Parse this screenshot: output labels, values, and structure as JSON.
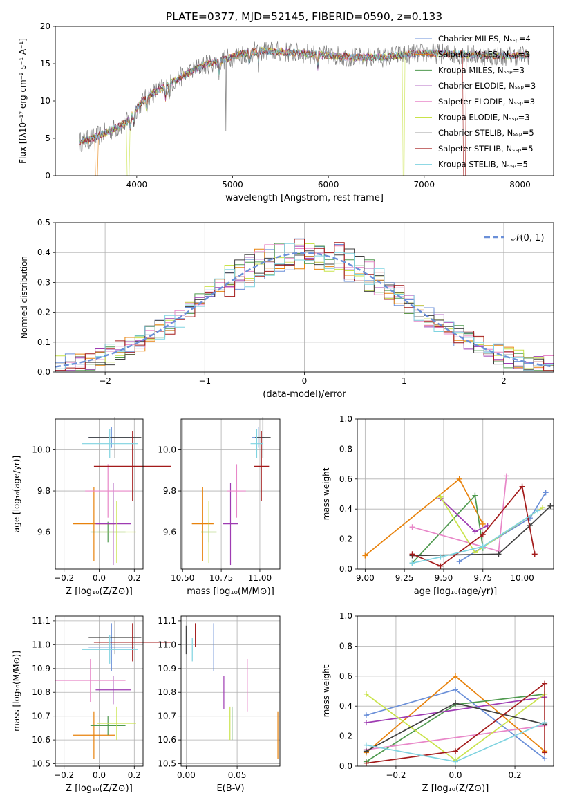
{
  "title": "PLATE=0377, MJD=52145, FIBERID=0590, z=0.133",
  "colors": {
    "c1": "#6a8fd8",
    "c2": "#e8820c",
    "c3": "#4f9a4f",
    "c4": "#9e3bb2",
    "c5": "#e887c8",
    "c6": "#c9e34a",
    "c7": "#404040",
    "c8": "#a31a1a",
    "c9": "#7fd3e0",
    "spec_gray": "#7f7f7f",
    "grid": "#b0b0b0"
  },
  "chart_data": [
    {
      "id": "spectrum",
      "type": "line",
      "xlabel": "wavelength [Angstrom, rest frame]",
      "ylabel": "Flux [fλ10⁻¹⁷ erg cm⁻² s⁻¹ A⁻¹]",
      "xlim": [
        3150,
        8350
      ],
      "ylim": [
        0,
        20
      ],
      "xticks": [
        "4000",
        "5000",
        "6000",
        "7000",
        "8000"
      ],
      "yticks": [
        "0",
        "5",
        "10",
        "15",
        "20"
      ],
      "grid": false,
      "legend_position": "top-right",
      "legend": [
        "Chabrier MILES, N_SSP=4",
        "Salpeter MILES, N_SSP=3",
        "Kroupa MILES, N_SSP=3",
        "Chabrier ELODIE, N_SSP=3",
        "Salpeter ELODIE, N_SSP=3",
        "Kroupa ELODIE, N_SSP=3",
        "Chabrier STELIB, N_SSP=5",
        "Salpeter STELIB, N_SSP=5",
        "Kroupa STELIB, N_SSP=5"
      ],
      "continuum": {
        "x": [
          3400,
          3500,
          3650,
          3800,
          3900,
          4000,
          4100,
          4300,
          4500,
          4700,
          4900,
          5100,
          5300,
          5500,
          5700,
          6000,
          6300,
          6600,
          6800,
          7000,
          7300,
          7600,
          7900,
          8100
        ],
        "y": [
          4.5,
          4.8,
          5.6,
          6.5,
          7.2,
          9.0,
          10.5,
          12.0,
          13.5,
          14.8,
          15.5,
          16.3,
          16.7,
          16.6,
          16.4,
          16.1,
          15.8,
          15.9,
          16.2,
          16.4,
          16.3,
          16.1,
          16.0,
          16.2
        ]
      }
    },
    {
      "id": "residuals",
      "type": "histogram",
      "xlabel": "(data-model)/error",
      "ylabel": "Normed distribution",
      "xlim": [
        -2.5,
        2.5
      ],
      "ylim": [
        0,
        0.5
      ],
      "xticks": [
        "−2",
        "−1",
        "0",
        "1",
        "2"
      ],
      "yticks": [
        "0.0",
        "0.1",
        "0.2",
        "0.3",
        "0.4",
        "0.5"
      ],
      "grid": true,
      "legend_position": "top-right",
      "legend": [
        "𝒩(0, 1)"
      ],
      "bin_width": 0.1,
      "curve": "normal pdf, mean 0, sigma 1"
    },
    {
      "id": "age_vs_Z",
      "type": "scatter",
      "xlabel": "Z [log₁₀(Z/Z⊙)]",
      "ylabel": "age  [log₁₀(age/yr)]",
      "xlim": [
        -0.25,
        0.25
      ],
      "ylim": [
        9.42,
        10.15
      ],
      "xticks": [
        "−0.2",
        "0.0",
        "0.2"
      ],
      "yticks": [
        "9.6",
        "9.8",
        "10.0"
      ],
      "grid": true,
      "points": [
        {
          "x": 0.07,
          "y": 10.06,
          "xerr": 0.13,
          "yerr": 0.05,
          "color": "c1"
        },
        {
          "x": -0.03,
          "y": 9.64,
          "xerr": 0.12,
          "yerr": 0.18,
          "color": "c2"
        },
        {
          "x": 0.05,
          "y": 9.6,
          "xerr": 0.1,
          "yerr": 0.05,
          "color": "c3"
        },
        {
          "x": 0.08,
          "y": 9.64,
          "xerr": 0.1,
          "yerr": 0.2,
          "color": "c4"
        },
        {
          "x": 0.05,
          "y": 9.8,
          "xerr": 0.13,
          "yerr": 0.13,
          "color": "c5"
        },
        {
          "x": 0.1,
          "y": 9.6,
          "xerr": 0.11,
          "yerr": 0.15,
          "color": "c6"
        },
        {
          "x": 0.09,
          "y": 10.06,
          "xerr": 0.15,
          "yerr": 0.1,
          "color": "c7"
        },
        {
          "x": 0.19,
          "y": 9.92,
          "xerr": 0.22,
          "yerr": 0.17,
          "color": "c8"
        },
        {
          "x": 0.06,
          "y": 10.03,
          "xerr": 0.16,
          "yerr": 0.07,
          "color": "c9"
        }
      ]
    },
    {
      "id": "age_vs_mass",
      "type": "scatter",
      "xlabel": "mass [log₁₀(M/M⊙)]",
      "ylabel": "",
      "xlim": [
        10.49,
        11.13
      ],
      "ylim": [
        9.42,
        10.15
      ],
      "xticks": [
        "10.50",
        "10.75",
        "11.00"
      ],
      "yticks": [
        "9.6",
        "9.8",
        "10.0"
      ],
      "grid": true,
      "points": [
        {
          "x": 10.99,
          "y": 10.06,
          "xerr": 0.04,
          "yerr": 0.05,
          "color": "c1"
        },
        {
          "x": 10.63,
          "y": 9.64,
          "xerr": 0.07,
          "yerr": 0.18,
          "color": "c2"
        },
        {
          "x": 10.67,
          "y": 9.6,
          "xerr": 0.05,
          "yerr": 0.05,
          "color": "c3"
        },
        {
          "x": 10.81,
          "y": 9.64,
          "xerr": 0.05,
          "yerr": 0.2,
          "color": "c4"
        },
        {
          "x": 10.85,
          "y": 9.8,
          "xerr": 0.06,
          "yerr": 0.13,
          "color": "c5"
        },
        {
          "x": 10.67,
          "y": 9.6,
          "xerr": 0.05,
          "yerr": 0.15,
          "color": "c6"
        },
        {
          "x": 11.02,
          "y": 10.06,
          "xerr": 0.05,
          "yerr": 0.1,
          "color": "c7"
        },
        {
          "x": 11.01,
          "y": 9.92,
          "xerr": 0.05,
          "yerr": 0.17,
          "color": "c8"
        },
        {
          "x": 10.98,
          "y": 10.03,
          "xerr": 0.04,
          "yerr": 0.07,
          "color": "c9"
        }
      ]
    },
    {
      "id": "mass_weight_vs_age",
      "type": "line",
      "xlabel": "age  [log₁₀(age/yr)]",
      "ylabel": "mass weight",
      "xlim": [
        8.95,
        10.2
      ],
      "ylim": [
        0,
        1
      ],
      "xticks": [
        "9.00",
        "9.25",
        "9.50",
        "9.75",
        "10.00"
      ],
      "yticks": [
        "0.0",
        "0.2",
        "0.4",
        "0.6",
        "0.8",
        "1.0"
      ],
      "grid": true,
      "series": [
        {
          "color": "c1",
          "x": [
            9.6,
            10.05,
            10.15
          ],
          "y": [
            0.05,
            0.34,
            0.51
          ]
        },
        {
          "color": "c2",
          "x": [
            9.0,
            9.6,
            9.75
          ],
          "y": [
            0.09,
            0.6,
            0.3
          ]
        },
        {
          "color": "c3",
          "x": [
            9.3,
            9.7,
            9.75
          ],
          "y": [
            0.04,
            0.49,
            0.14
          ]
        },
        {
          "color": "c4",
          "x": [
            9.48,
            9.7,
            9.78
          ],
          "y": [
            0.47,
            0.25,
            0.29
          ]
        },
        {
          "color": "c5",
          "x": [
            9.3,
            9.85,
            9.9
          ],
          "y": [
            0.28,
            0.12,
            0.62
          ]
        },
        {
          "color": "c6",
          "x": [
            9.48,
            9.7,
            10.13
          ],
          "y": [
            0.48,
            0.11,
            0.41
          ]
        },
        {
          "color": "c7",
          "x": [
            9.3,
            9.85,
            10.05,
            10.18
          ],
          "y": [
            0.09,
            0.1,
            0.29,
            0.42
          ]
        },
        {
          "color": "c8",
          "x": [
            9.3,
            9.48,
            9.75,
            10.0,
            10.08
          ],
          "y": [
            0.1,
            0.02,
            0.23,
            0.55,
            0.1
          ]
        },
        {
          "color": "c9",
          "x": [
            9.3,
            9.48,
            9.75,
            10.1
          ],
          "y": [
            0.04,
            0.08,
            0.15,
            0.39
          ]
        }
      ]
    },
    {
      "id": "mass_vs_Z",
      "type": "scatter",
      "xlabel": "Z [log₁₀(Z/Z⊙)]",
      "ylabel": "mass [log₁₀(M/M⊙)]",
      "xlim": [
        -0.25,
        0.25
      ],
      "ylim": [
        10.49,
        11.12
      ],
      "xticks": [
        "−0.2",
        "0.0",
        "0.2"
      ],
      "yticks": [
        "10.5",
        "10.6",
        "10.7",
        "10.8",
        "10.9",
        "11.0",
        "11.1"
      ],
      "grid": true,
      "points": [
        {
          "x": 0.07,
          "y": 10.99,
          "xerr": 0.13,
          "yerr": 0.1,
          "color": "c1"
        },
        {
          "x": -0.03,
          "y": 10.62,
          "xerr": 0.12,
          "yerr": 0.1,
          "color": "c2"
        },
        {
          "x": 0.05,
          "y": 10.66,
          "xerr": 0.1,
          "yerr": 0.04,
          "color": "c3"
        },
        {
          "x": 0.08,
          "y": 10.81,
          "xerr": 0.1,
          "yerr": 0.06,
          "color": "c4"
        },
        {
          "x": -0.05,
          "y": 10.85,
          "xerr": 0.2,
          "yerr": 0.09,
          "color": "c5"
        },
        {
          "x": 0.1,
          "y": 10.67,
          "xerr": 0.11,
          "yerr": 0.07,
          "color": "c6"
        },
        {
          "x": 0.09,
          "y": 11.03,
          "xerr": 0.15,
          "yerr": 0.07,
          "color": "c7"
        },
        {
          "x": 0.19,
          "y": 11.01,
          "xerr": 0.22,
          "yerr": 0.08,
          "color": "c8"
        },
        {
          "x": 0.06,
          "y": 10.98,
          "xerr": 0.16,
          "yerr": 0.06,
          "color": "c9"
        }
      ]
    },
    {
      "id": "mass_vs_EBV",
      "type": "scatter",
      "xlabel": "E(B-V)",
      "ylabel": "",
      "xlim": [
        -0.005,
        0.092
      ],
      "ylim": [
        10.49,
        11.12
      ],
      "xticks": [
        "0.00",
        "0.05"
      ],
      "yticks": [
        "10.5",
        "10.6",
        "10.7",
        "10.8",
        "10.9",
        "11.0",
        "11.1"
      ],
      "grid": true,
      "points": [
        {
          "x": 0.027,
          "y": 10.99,
          "xerr": 0.0,
          "yerr": 0.1,
          "color": "c1"
        },
        {
          "x": 0.09,
          "y": 10.62,
          "xerr": 0.0,
          "yerr": 0.1,
          "color": "c2"
        },
        {
          "x": 0.045,
          "y": 10.67,
          "xerr": 0.0,
          "yerr": 0.07,
          "color": "c3"
        },
        {
          "x": 0.037,
          "y": 10.8,
          "xerr": 0.0,
          "yerr": 0.07,
          "color": "c4"
        },
        {
          "x": 0.06,
          "y": 10.83,
          "xerr": 0.0,
          "yerr": 0.11,
          "color": "c5"
        },
        {
          "x": 0.043,
          "y": 10.67,
          "xerr": 0.0,
          "yerr": 0.07,
          "color": "c6"
        },
        {
          "x": 0.0,
          "y": 11.02,
          "xerr": 0.0,
          "yerr": 0.06,
          "color": "c7"
        },
        {
          "x": 0.009,
          "y": 11.04,
          "xerr": 0.0,
          "yerr": 0.05,
          "color": "c8"
        },
        {
          "x": 0.006,
          "y": 10.98,
          "xerr": 0.0,
          "yerr": 0.05,
          "color": "c9"
        }
      ]
    },
    {
      "id": "mass_weight_vs_Z",
      "type": "line",
      "xlabel": "Z [log₁₀(Z/Z⊙)]",
      "ylabel": "mass weight",
      "xlim": [
        -0.33,
        0.33
      ],
      "ylim": [
        0,
        1
      ],
      "xticks": [
        "−0.2",
        "0.0",
        "0.2"
      ],
      "yticks": [
        "0.0",
        "0.2",
        "0.4",
        "0.6",
        "0.8",
        "1.0"
      ],
      "grid": true,
      "series": [
        {
          "color": "c1",
          "x": [
            -0.3,
            0.0,
            0.3
          ],
          "y": [
            0.34,
            0.51,
            0.05
          ]
        },
        {
          "color": "c2",
          "x": [
            -0.3,
            0.0,
            0.3
          ],
          "y": [
            0.09,
            0.6,
            0.1
          ]
        },
        {
          "color": "c3",
          "x": [
            -0.3,
            0.0,
            0.3
          ],
          "y": [
            0.03,
            0.41,
            0.48
          ]
        },
        {
          "color": "c4",
          "x": [
            -0.3,
            0.3
          ],
          "y": [
            0.29,
            0.46
          ]
        },
        {
          "color": "c5",
          "x": [
            -0.3,
            0.3
          ],
          "y": [
            0.11,
            0.27
          ]
        },
        {
          "color": "c6",
          "x": [
            -0.3,
            0.0,
            0.3
          ],
          "y": [
            0.48,
            0.04,
            0.48
          ]
        },
        {
          "color": "c7",
          "x": [
            -0.3,
            0.0,
            0.3
          ],
          "y": [
            0.1,
            0.42,
            0.28
          ]
        },
        {
          "color": "c8",
          "x": [
            -0.3,
            0.0,
            0.3,
            0.3
          ],
          "y": [
            0.02,
            0.1,
            0.55,
            0.09
          ]
        },
        {
          "color": "c9",
          "x": [
            -0.3,
            0.0,
            0.3
          ],
          "y": [
            0.14,
            0.03,
            0.29
          ]
        }
      ]
    }
  ]
}
